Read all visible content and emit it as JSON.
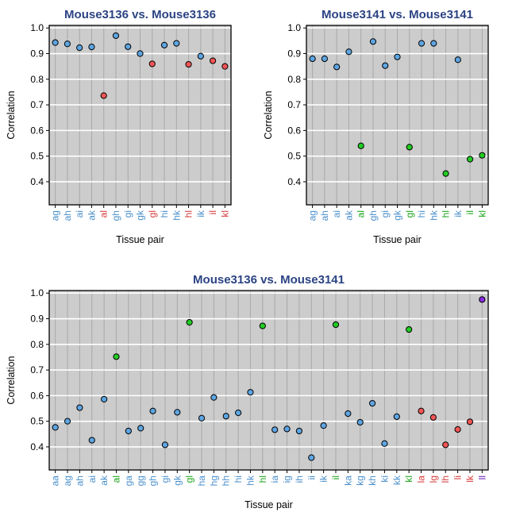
{
  "colors": {
    "blue": "#4a8fcb",
    "green": "#1aa51a",
    "red": "#d63a3a",
    "purple": "#6a1fb0",
    "point_blue": "#5ea5e2",
    "point_green": "#22cc22",
    "point_red": "#f25555",
    "point_purple": "#8a2be2",
    "title": "#2b4383",
    "panel_bg": "#cccccc"
  },
  "chart_data": [
    {
      "type": "scatter",
      "title": "Mouse3136 vs. Mouse3136",
      "xlabel": "Tissue pair",
      "ylabel": "Correlation",
      "ylim": [
        0.31,
        1.01
      ],
      "yticks": [
        "0.4",
        "0.5",
        "0.6",
        "0.7",
        "0.8",
        "0.9",
        "1.0"
      ],
      "grid": true,
      "categories": [
        "ag",
        "ah",
        "ai",
        "ak",
        "al",
        "gh",
        "gi",
        "gk",
        "gl",
        "hi",
        "hk",
        "hl",
        "ik",
        "il",
        "kl"
      ],
      "groups": [
        "blue",
        "blue",
        "blue",
        "blue",
        "red",
        "blue",
        "blue",
        "blue",
        "red",
        "blue",
        "blue",
        "red",
        "blue",
        "red",
        "red"
      ],
      "values": [
        0.943,
        0.938,
        0.923,
        0.926,
        0.736,
        0.97,
        0.927,
        0.9,
        0.86,
        0.933,
        0.94,
        0.858,
        0.89,
        0.872,
        0.85
      ]
    },
    {
      "type": "scatter",
      "title": "Mouse3141 vs. Mouse3141",
      "xlabel": "Tissue pair",
      "ylabel": "Correlation",
      "ylim": [
        0.31,
        1.01
      ],
      "yticks": [
        "0.4",
        "0.5",
        "0.6",
        "0.7",
        "0.8",
        "0.9",
        "1.0"
      ],
      "grid": true,
      "categories": [
        "ag",
        "ah",
        "ai",
        "ak",
        "al",
        "gh",
        "gi",
        "gk",
        "gl",
        "hi",
        "hk",
        "hl",
        "ik",
        "il",
        "kl"
      ],
      "groups": [
        "blue",
        "blue",
        "blue",
        "blue",
        "green",
        "blue",
        "blue",
        "blue",
        "green",
        "blue",
        "blue",
        "green",
        "blue",
        "green",
        "green"
      ],
      "values": [
        0.88,
        0.88,
        0.848,
        0.907,
        0.54,
        0.947,
        0.853,
        0.887,
        0.535,
        0.94,
        0.94,
        0.432,
        0.876,
        0.488,
        0.503
      ]
    },
    {
      "type": "scatter",
      "title": "Mouse3136 vs. Mouse3141",
      "xlabel": "Tissue pair",
      "ylabel": "Correlation",
      "ylim": [
        0.31,
        1.01
      ],
      "yticks": [
        "0.4",
        "0.5",
        "0.6",
        "0.7",
        "0.8",
        "0.9",
        "1.0"
      ],
      "grid": true,
      "categories": [
        "aa",
        "ag",
        "ah",
        "ai",
        "ak",
        "al",
        "ga",
        "gg",
        "gh",
        "gi",
        "gk",
        "gl",
        "ha",
        "hg",
        "hh",
        "hi",
        "hk",
        "hl",
        "ia",
        "ig",
        "ih",
        "ii",
        "ik",
        "il",
        "ka",
        "kg",
        "kh",
        "ki",
        "kk",
        "kl",
        "la",
        "lg",
        "lh",
        "li",
        "lk",
        "ll"
      ],
      "groups": [
        "blue",
        "blue",
        "blue",
        "blue",
        "blue",
        "green",
        "blue",
        "blue",
        "blue",
        "blue",
        "blue",
        "green",
        "blue",
        "blue",
        "blue",
        "blue",
        "blue",
        "green",
        "blue",
        "blue",
        "blue",
        "blue",
        "blue",
        "green",
        "blue",
        "blue",
        "blue",
        "blue",
        "blue",
        "green",
        "red",
        "red",
        "red",
        "red",
        "red",
        "purple"
      ],
      "values": [
        0.476,
        0.5,
        0.553,
        0.426,
        0.586,
        0.752,
        0.462,
        0.473,
        0.54,
        0.408,
        0.535,
        0.886,
        0.512,
        0.593,
        0.52,
        0.533,
        0.613,
        0.872,
        0.467,
        0.47,
        0.462,
        0.358,
        0.483,
        0.877,
        0.53,
        0.496,
        0.57,
        0.413,
        0.518,
        0.858,
        0.54,
        0.515,
        0.408,
        0.468,
        0.498,
        0.975
      ]
    }
  ]
}
